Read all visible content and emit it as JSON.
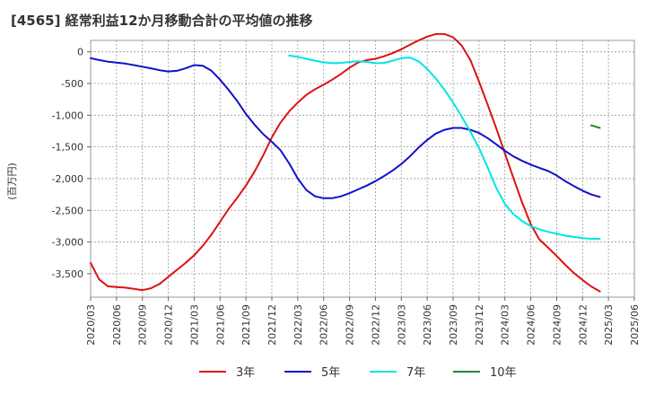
{
  "chart_data": {
    "type": "line",
    "title": "[4565]  経常利益12か月移動合計の平均値の推移",
    "ylabel": "(百万円)",
    "xlabel": "",
    "ylim": [
      -3870,
      180
    ],
    "yticks": [
      0,
      -500,
      -1000,
      -1500,
      -2000,
      -2500,
      -3000,
      -3500
    ],
    "ytick_labels": [
      "0",
      "-500",
      "-1,000",
      "-1,500",
      "-2,000",
      "-2,500",
      "-3,000",
      "-3,500"
    ],
    "x_categories": [
      "2020/03",
      "2020/06",
      "2020/09",
      "2020/12",
      "2021/03",
      "2021/06",
      "2021/09",
      "2021/12",
      "2022/03",
      "2022/06",
      "2022/09",
      "2022/12",
      "2023/03",
      "2023/06",
      "2023/09",
      "2023/12",
      "2024/03",
      "2024/06",
      "2024/09",
      "2024/12",
      "2025/03",
      "2025/06"
    ],
    "grid": true,
    "legend_position": "bottom",
    "series": [
      {
        "name": "3年",
        "color": "#dd1111",
        "points": [
          [
            0,
            -3330
          ],
          [
            0.33,
            -3590
          ],
          [
            0.67,
            -3700
          ],
          [
            1,
            -3710
          ],
          [
            1.33,
            -3720
          ],
          [
            1.67,
            -3740
          ],
          [
            2,
            -3760
          ],
          [
            2.33,
            -3730
          ],
          [
            2.67,
            -3660
          ],
          [
            3,
            -3550
          ],
          [
            3.33,
            -3440
          ],
          [
            3.67,
            -3330
          ],
          [
            4,
            -3210
          ],
          [
            4.33,
            -3060
          ],
          [
            4.67,
            -2880
          ],
          [
            5,
            -2680
          ],
          [
            5.33,
            -2480
          ],
          [
            5.67,
            -2300
          ],
          [
            6,
            -2110
          ],
          [
            6.33,
            -1890
          ],
          [
            6.67,
            -1630
          ],
          [
            7,
            -1350
          ],
          [
            7.33,
            -1120
          ],
          [
            7.67,
            -940
          ],
          [
            8,
            -800
          ],
          [
            8.33,
            -680
          ],
          [
            8.67,
            -590
          ],
          [
            9,
            -520
          ],
          [
            9.33,
            -440
          ],
          [
            9.67,
            -350
          ],
          [
            10,
            -250
          ],
          [
            10.33,
            -170
          ],
          [
            10.67,
            -130
          ],
          [
            11,
            -110
          ],
          [
            11.33,
            -70
          ],
          [
            11.67,
            -20
          ],
          [
            12,
            40
          ],
          [
            12.33,
            110
          ],
          [
            12.67,
            180
          ],
          [
            13,
            240
          ],
          [
            13.33,
            280
          ],
          [
            13.67,
            280
          ],
          [
            14,
            230
          ],
          [
            14.33,
            100
          ],
          [
            14.67,
            -130
          ],
          [
            15,
            -470
          ],
          [
            15.33,
            -830
          ],
          [
            15.67,
            -1210
          ],
          [
            16,
            -1600
          ],
          [
            16.33,
            -1990
          ],
          [
            16.67,
            -2380
          ],
          [
            17,
            -2720
          ],
          [
            17.33,
            -2960
          ],
          [
            17.67,
            -3090
          ],
          [
            18,
            -3220
          ],
          [
            18.33,
            -3360
          ],
          [
            18.67,
            -3490
          ],
          [
            19,
            -3600
          ],
          [
            19.33,
            -3700
          ],
          [
            19.67,
            -3780
          ]
        ]
      },
      {
        "name": "5年",
        "color": "#1111cc",
        "points": [
          [
            0,
            -100
          ],
          [
            0.33,
            -130
          ],
          [
            0.67,
            -155
          ],
          [
            1,
            -170
          ],
          [
            1.33,
            -185
          ],
          [
            1.67,
            -210
          ],
          [
            2,
            -235
          ],
          [
            2.33,
            -260
          ],
          [
            2.67,
            -290
          ],
          [
            3,
            -310
          ],
          [
            3.33,
            -300
          ],
          [
            3.67,
            -260
          ],
          [
            4,
            -210
          ],
          [
            4.33,
            -220
          ],
          [
            4.67,
            -300
          ],
          [
            5,
            -440
          ],
          [
            5.33,
            -600
          ],
          [
            5.67,
            -780
          ],
          [
            6,
            -980
          ],
          [
            6.33,
            -1150
          ],
          [
            6.67,
            -1300
          ],
          [
            7,
            -1420
          ],
          [
            7.33,
            -1550
          ],
          [
            7.67,
            -1760
          ],
          [
            8,
            -2000
          ],
          [
            8.33,
            -2180
          ],
          [
            8.67,
            -2280
          ],
          [
            9,
            -2310
          ],
          [
            9.33,
            -2310
          ],
          [
            9.67,
            -2280
          ],
          [
            10,
            -2230
          ],
          [
            10.33,
            -2170
          ],
          [
            10.67,
            -2110
          ],
          [
            11,
            -2040
          ],
          [
            11.33,
            -1960
          ],
          [
            11.67,
            -1870
          ],
          [
            12,
            -1770
          ],
          [
            12.33,
            -1650
          ],
          [
            12.67,
            -1510
          ],
          [
            13,
            -1390
          ],
          [
            13.33,
            -1290
          ],
          [
            13.67,
            -1230
          ],
          [
            14,
            -1200
          ],
          [
            14.33,
            -1200
          ],
          [
            14.67,
            -1230
          ],
          [
            15,
            -1280
          ],
          [
            15.33,
            -1360
          ],
          [
            15.67,
            -1460
          ],
          [
            16,
            -1560
          ],
          [
            16.33,
            -1650
          ],
          [
            16.67,
            -1720
          ],
          [
            17,
            -1780
          ],
          [
            17.33,
            -1830
          ],
          [
            17.67,
            -1880
          ],
          [
            18,
            -1950
          ],
          [
            18.33,
            -2040
          ],
          [
            18.67,
            -2120
          ],
          [
            19,
            -2190
          ],
          [
            19.33,
            -2250
          ],
          [
            19.67,
            -2290
          ]
        ]
      },
      {
        "name": "7年",
        "color": "#00e5e5",
        "points": [
          [
            7.67,
            -60
          ],
          [
            8,
            -80
          ],
          [
            8.33,
            -110
          ],
          [
            8.67,
            -140
          ],
          [
            9,
            -165
          ],
          [
            9.33,
            -180
          ],
          [
            9.67,
            -175
          ],
          [
            10,
            -160
          ],
          [
            10.33,
            -150
          ],
          [
            10.67,
            -160
          ],
          [
            11,
            -180
          ],
          [
            11.33,
            -175
          ],
          [
            11.67,
            -140
          ],
          [
            12,
            -100
          ],
          [
            12.33,
            -90
          ],
          [
            12.67,
            -150
          ],
          [
            13,
            -270
          ],
          [
            13.33,
            -420
          ],
          [
            13.67,
            -600
          ],
          [
            14,
            -800
          ],
          [
            14.33,
            -1020
          ],
          [
            14.67,
            -1260
          ],
          [
            15,
            -1520
          ],
          [
            15.33,
            -1820
          ],
          [
            15.67,
            -2150
          ],
          [
            16,
            -2400
          ],
          [
            16.33,
            -2560
          ],
          [
            16.67,
            -2670
          ],
          [
            17,
            -2750
          ],
          [
            17.33,
            -2800
          ],
          [
            17.67,
            -2840
          ],
          [
            18,
            -2870
          ],
          [
            18.33,
            -2900
          ],
          [
            18.67,
            -2920
          ],
          [
            19,
            -2940
          ],
          [
            19.33,
            -2950
          ],
          [
            19.67,
            -2950
          ]
        ]
      },
      {
        "name": "10年",
        "color": "#228833",
        "points": [
          [
            19.33,
            -1160
          ],
          [
            19.67,
            -1200
          ]
        ]
      }
    ]
  }
}
